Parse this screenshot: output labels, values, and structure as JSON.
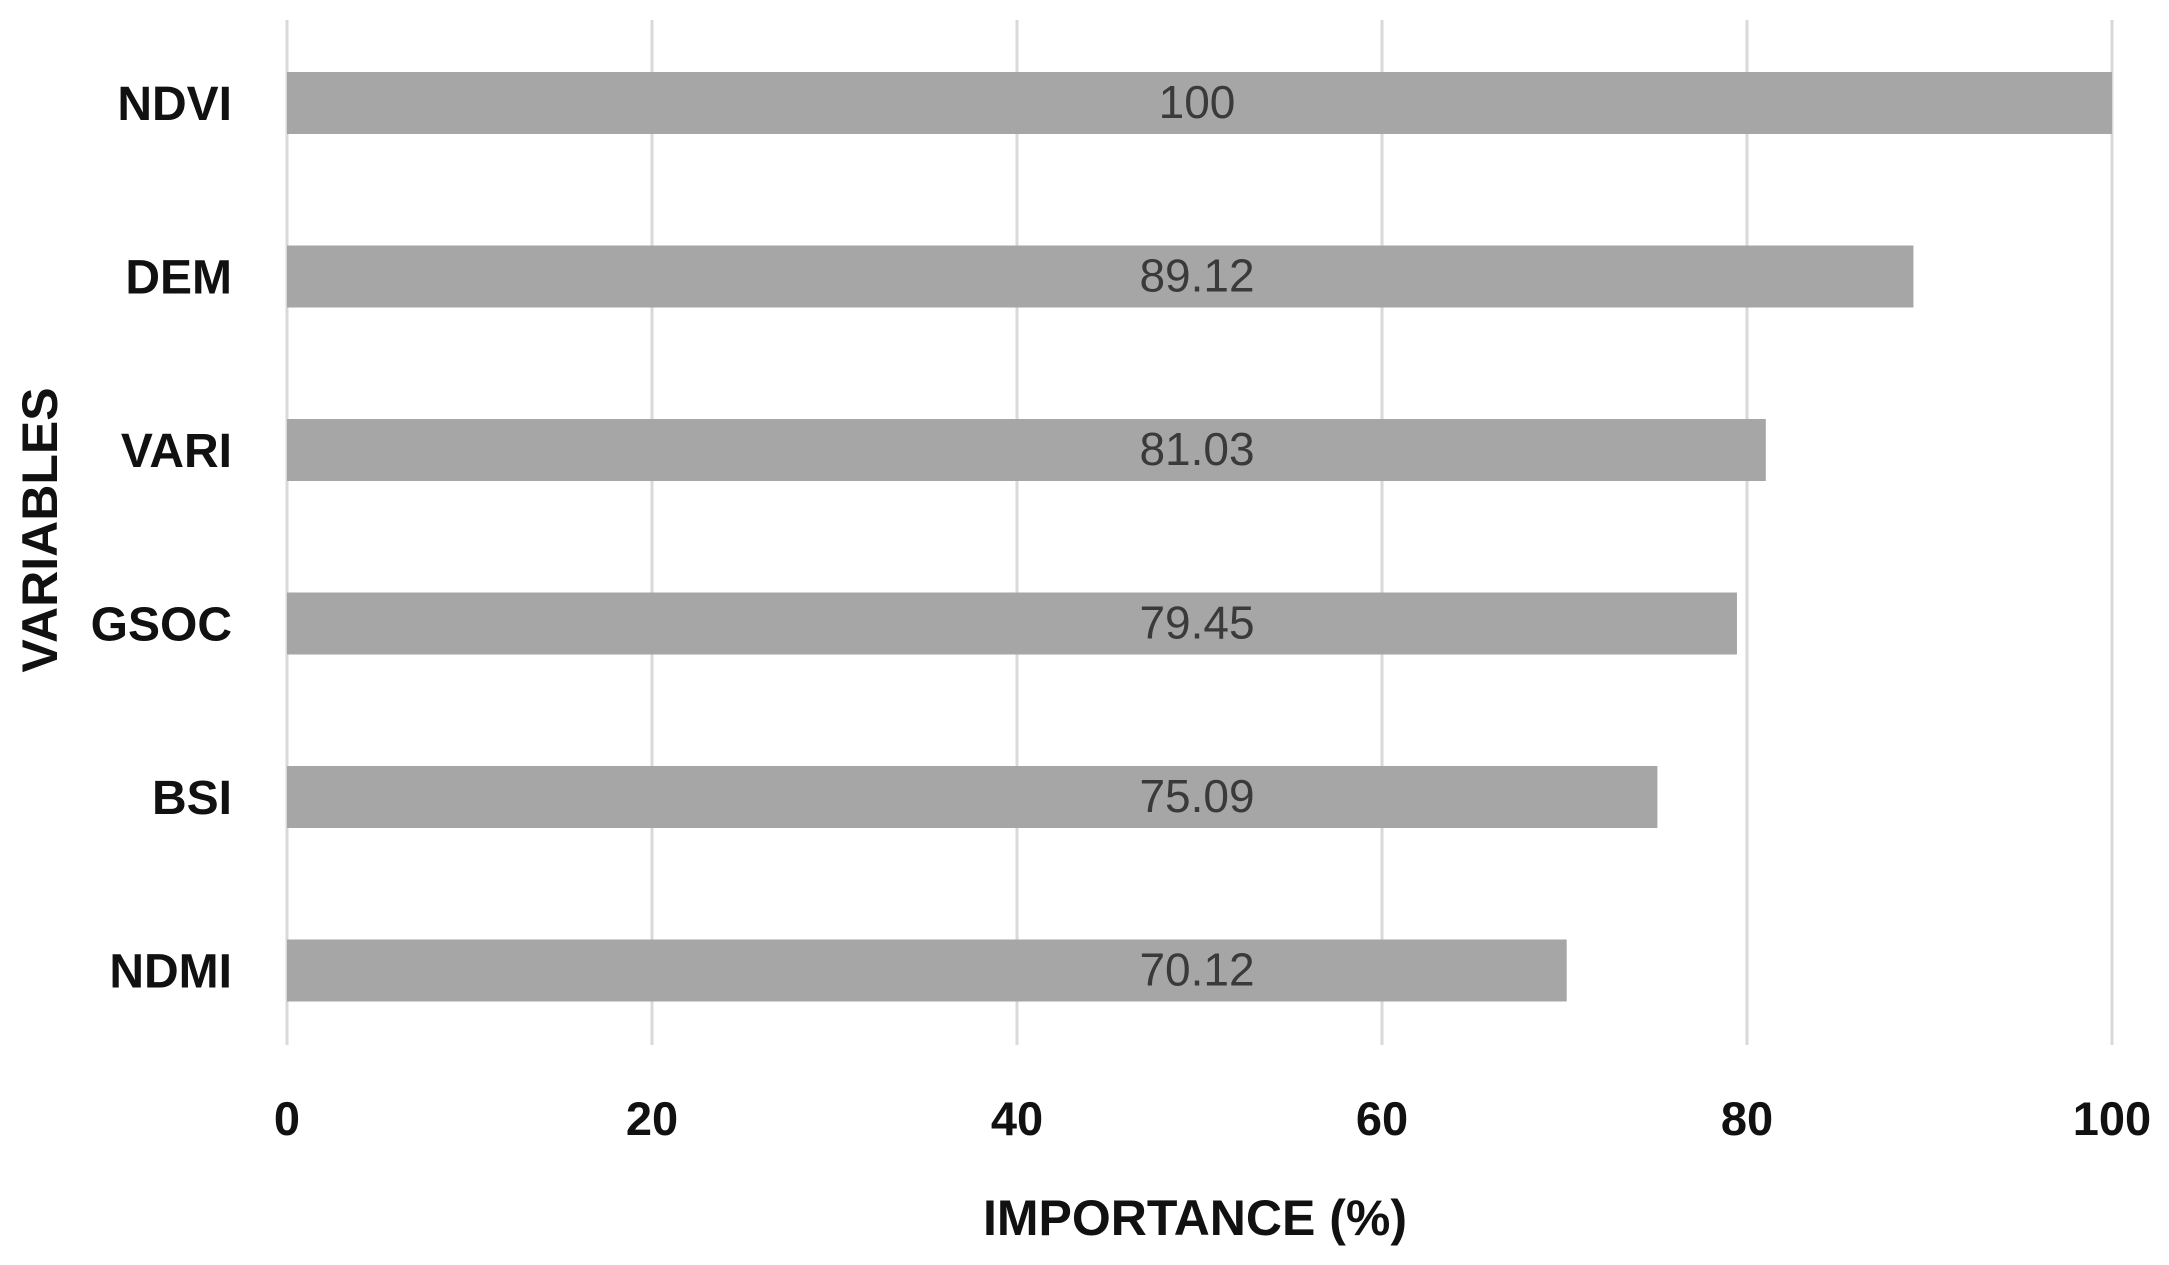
{
  "chart_data": {
    "type": "bar",
    "orientation": "horizontal",
    "title": "",
    "xlabel": "IMPORTANCE (%)",
    "ylabel": "VARIABLES",
    "categories": [
      "NDVI",
      "DEM",
      "VARI",
      "GSOC",
      "BSI",
      "NDMI"
    ],
    "values": [
      100,
      89.12,
      81.03,
      79.45,
      75.09,
      70.12
    ],
    "data_labels": [
      "100",
      "89.12",
      "81.03",
      "79.45",
      "75.09",
      "70.12"
    ],
    "xlim": [
      0,
      100
    ],
    "xticks": [
      0,
      20,
      40,
      60,
      80,
      100
    ],
    "xtick_labels": [
      "0",
      "20",
      "40",
      "60",
      "80",
      "100"
    ],
    "grid": "vertical",
    "legend": "none",
    "bar_color": "#a6a6a6",
    "grid_color": "#d9d9d9"
  }
}
